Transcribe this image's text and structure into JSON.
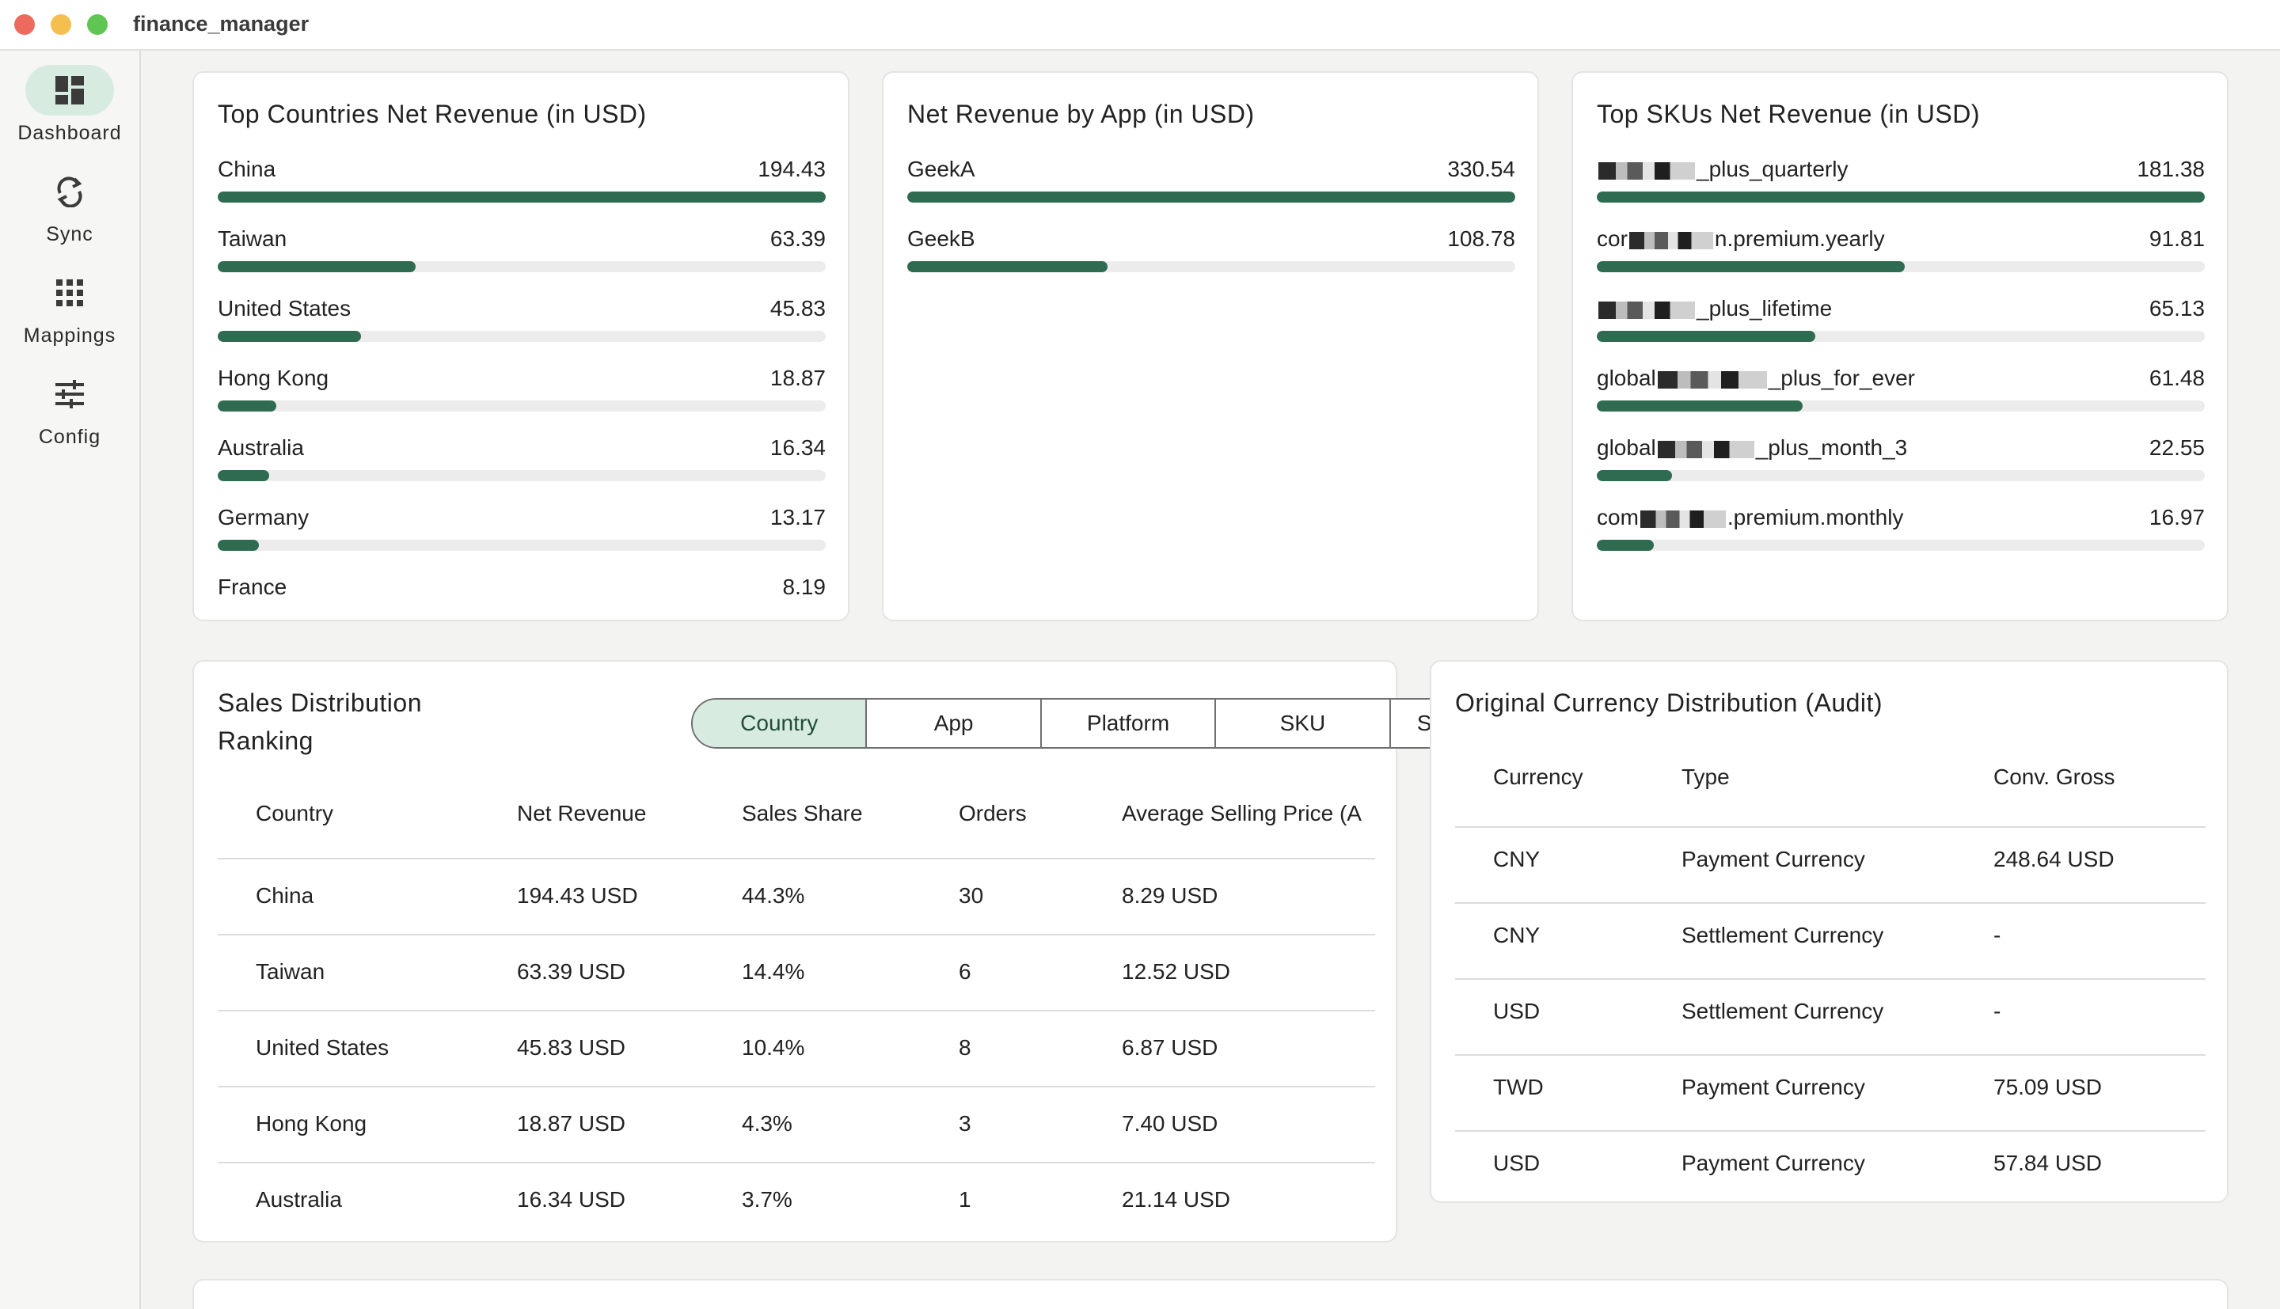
{
  "window": {
    "title": "finance_manager"
  },
  "sidebar": {
    "items": [
      {
        "label": "Dashboard",
        "icon": "dashboard-icon",
        "active": true
      },
      {
        "label": "Sync",
        "icon": "sync-icon",
        "active": false
      },
      {
        "label": "Mappings",
        "icon": "grid-icon",
        "active": false
      },
      {
        "label": "Config",
        "icon": "sliders-icon",
        "active": false
      }
    ]
  },
  "colors": {
    "accent": "#2f6b50",
    "accent_light": "#d8ebe0",
    "track": "#ececec"
  },
  "top_countries": {
    "title": "Top Countries Net Revenue (in USD)",
    "rows": [
      {
        "label": "China",
        "value": "194.43",
        "share": 1.0
      },
      {
        "label": "Taiwan",
        "value": "63.39",
        "share": 0.326
      },
      {
        "label": "United States",
        "value": "45.83",
        "share": 0.236
      },
      {
        "label": "Hong Kong",
        "value": "18.87",
        "share": 0.097
      },
      {
        "label": "Australia",
        "value": "16.34",
        "share": 0.084
      },
      {
        "label": "Germany",
        "value": "13.17",
        "share": 0.068
      },
      {
        "label": "France",
        "value": "8.19",
        "share": 0.042
      }
    ]
  },
  "by_app": {
    "title": "Net Revenue by App (in USD)",
    "rows": [
      {
        "label": "GeekA",
        "value": "330.54",
        "share": 1.0
      },
      {
        "label": "GeekB",
        "value": "108.78",
        "share": 0.329
      }
    ]
  },
  "top_skus": {
    "title": "Top SKUs Net Revenue (in USD)",
    "rows": [
      {
        "prefix": "",
        "suffix": "_plus_quarterly",
        "value": "181.38",
        "share": 1.0
      },
      {
        "prefix": "cor",
        "suffix": "n.premium.yearly",
        "value": "91.81",
        "share": 0.506
      },
      {
        "prefix": "",
        "suffix": "_plus_lifetime",
        "value": "65.13",
        "share": 0.359
      },
      {
        "prefix": "global",
        "suffix": "_plus_for_ever",
        "value": "61.48",
        "share": 0.339
      },
      {
        "prefix": "global",
        "suffix": "_plus_month_3",
        "value": "22.55",
        "share": 0.124
      },
      {
        "prefix": "com",
        "suffix": ".premium.monthly",
        "value": "16.97",
        "share": 0.094
      }
    ]
  },
  "sales_distribution": {
    "title_line1": "Sales Distribution",
    "title_line2": "Ranking",
    "tabs": [
      "Country",
      "App",
      "Platform",
      "SKU",
      "Subscription"
    ],
    "active_tab": "Country",
    "columns": [
      "Country",
      "Net Revenue",
      "Sales Share",
      "Orders",
      "Average Selling Price (A"
    ],
    "rows": [
      [
        "China",
        "194.43 USD",
        "44.3%",
        "30",
        "8.29 USD"
      ],
      [
        "Taiwan",
        "63.39 USD",
        "14.4%",
        "6",
        "12.52 USD"
      ],
      [
        "United States",
        "45.83 USD",
        "10.4%",
        "8",
        "6.87 USD"
      ],
      [
        "Hong Kong",
        "18.87 USD",
        "4.3%",
        "3",
        "7.40 USD"
      ],
      [
        "Australia",
        "16.34 USD",
        "3.7%",
        "1",
        "21.14 USD"
      ]
    ]
  },
  "currency_distribution": {
    "title": "Original Currency Distribution (Audit)",
    "columns": [
      "Currency",
      "Type",
      "Conv. Gross"
    ],
    "rows": [
      [
        "CNY",
        "Payment Currency",
        "248.64 USD"
      ],
      [
        "CNY",
        "Settlement Currency",
        "-"
      ],
      [
        "USD",
        "Settlement Currency",
        "-"
      ],
      [
        "TWD",
        "Payment Currency",
        "75.09 USD"
      ],
      [
        "USD",
        "Payment Currency",
        "57.84 USD"
      ]
    ]
  }
}
